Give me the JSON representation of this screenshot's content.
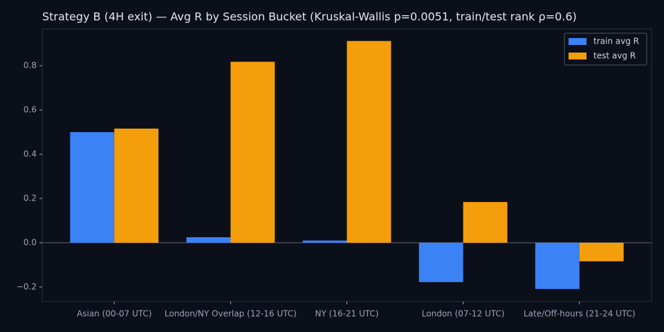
{
  "chart_data": {
    "type": "bar",
    "title": "Strategy B (4H exit) — Avg R by Session Bucket (Kruskal-Wallis p=0.0051, train/test rank ρ=0.6)",
    "categories": [
      "Asian (00-07 UTC)",
      "London/NY Overlap (12-16 UTC)",
      "NY (16-21 UTC)",
      "London (07-12 UTC)",
      "Late/Off-hours (21-24 UTC)"
    ],
    "series": [
      {
        "name": "train avg R",
        "color": "#3b82f6",
        "values": [
          0.5,
          0.025,
          0.01,
          -0.178,
          -0.209
        ]
      },
      {
        "name": "test avg R",
        "color": "#f59e0b",
        "values": [
          0.516,
          0.818,
          0.912,
          0.184,
          -0.084
        ]
      }
    ],
    "ylim": [
      -0.266,
      0.966
    ],
    "yticks": [
      {
        "value": -0.2,
        "label": "−0.2"
      },
      {
        "value": 0,
        "label": "0.0"
      },
      0.2,
      0.4,
      0.6,
      0.8
    ],
    "legend": "upper right",
    "grid": false
  }
}
